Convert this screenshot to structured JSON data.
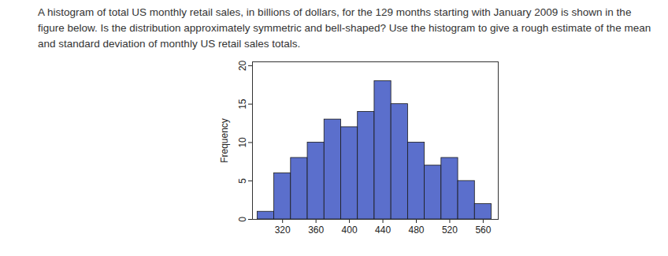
{
  "chart_data": {
    "type": "histogram",
    "title": "A histogram of total US monthly retail sales, in billions of dollars, for the 129 months starting with January 2009 is shown in the figure below. Is the distribution approximately symmetric and bell-shaped? Use the histogram to give a rough estimate of the mean and standard deviation of monthly US retail sales totals.",
    "y_label": "Frequency",
    "bins": [
      290,
      310,
      330,
      350,
      370,
      390,
      410,
      430,
      450,
      470,
      490,
      510,
      530,
      550,
      570
    ],
    "values": [
      1,
      6,
      8,
      10,
      13,
      12,
      14,
      18,
      15,
      10,
      7,
      8,
      5,
      2
    ],
    "color": "#5b6fcc",
    "xlim": [
      284,
      578
    ],
    "xticks": [
      320,
      360,
      400,
      440,
      480,
      520,
      560
    ],
    "ylim": [
      0,
      20.5
    ],
    "yticks": [
      0,
      5,
      10,
      15,
      20
    ]
  }
}
